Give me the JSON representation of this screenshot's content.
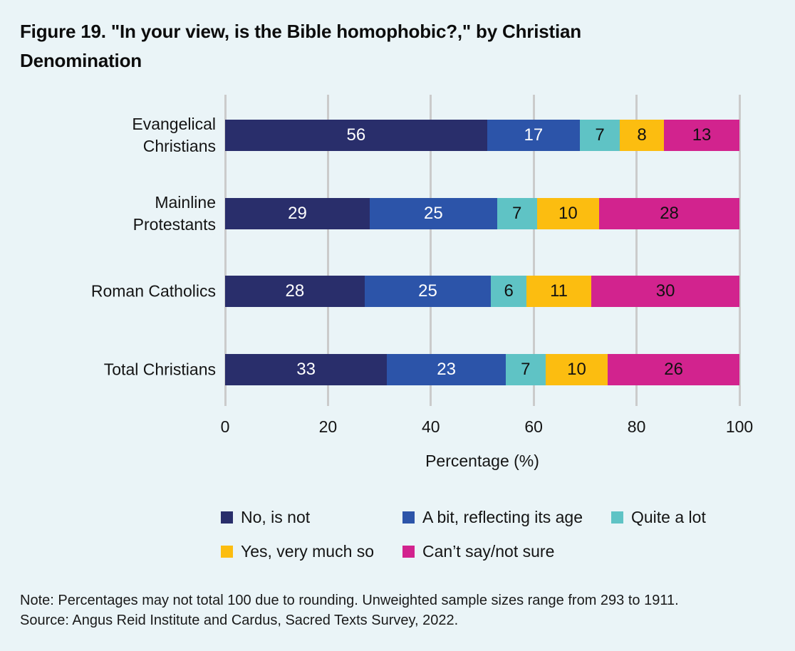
{
  "title": "Figure 19. \"In your view, is the Bible homophobic?,\" by Christian Denomination",
  "chart_data": {
    "type": "bar",
    "orientation": "horizontal",
    "stacked": true,
    "title": "Figure 19. \"In your view, is the Bible homophobic?,\" by Christian Denomination",
    "categories": [
      "Evangelical Christians",
      "Mainline Protestants",
      "Roman Catholics",
      "Total Christians"
    ],
    "category_label_lines": [
      [
        "Evangelical",
        "Christians"
      ],
      [
        "Mainline",
        "Protestants"
      ],
      [
        "Roman Catholics"
      ],
      [
        "Total Christians"
      ]
    ],
    "series": [
      {
        "name": "No, is not",
        "color": "#292E6B",
        "label_color": "#FFFFFF",
        "values": [
          56,
          29,
          28,
          33
        ]
      },
      {
        "name": "A bit, reflecting its age",
        "color": "#2C54A9",
        "label_color": "#FFFFFF",
        "values": [
          17,
          25,
          25,
          23
        ]
      },
      {
        "name": "Quite a lot",
        "color": "#5FC3C5",
        "label_color": "#111111",
        "values": [
          7,
          7,
          6,
          7
        ]
      },
      {
        "name": "Yes, very much so",
        "color": "#FCBD10",
        "label_color": "#111111",
        "values": [
          8,
          10,
          11,
          10
        ]
      },
      {
        "name": "Can’t say/not sure",
        "color": "#D2238E",
        "label_color": "#111111",
        "values": [
          13,
          28,
          30,
          26
        ]
      }
    ],
    "xlabel": "Percentage (%)",
    "ylabel": "",
    "x_ticks": [
      0,
      20,
      40,
      60,
      80,
      100
    ],
    "xlim": [
      0,
      100
    ],
    "grid": true,
    "legend_position": "bottom"
  },
  "note": "Note: Percentages may not total 100 due to rounding. Unweighted sample sizes range from 293 to 1911.",
  "source": "Source: Angus Reid Institute and Cardus, Sacred Texts Survey, 2022.",
  "colors": {
    "background": "#EAF4F7",
    "gridline": "#CBCBCB",
    "text": "#111111"
  }
}
